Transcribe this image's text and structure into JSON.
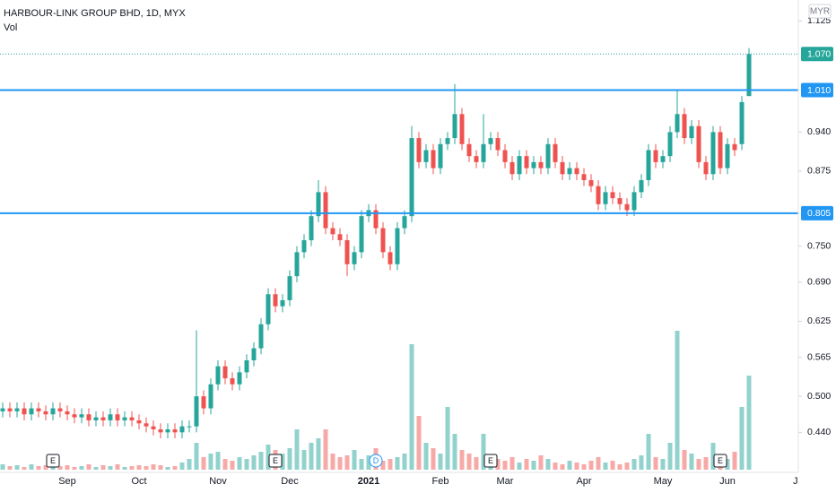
{
  "chart_data": {
    "type": "candlestick",
    "title": "HARBOUR-LINK GROUP BHD, 1D, MYX",
    "subtitle": "Vol",
    "currency": "MYR",
    "up_color": "#26a69a",
    "down_color": "#ef5350",
    "level_color": "#2196f3",
    "ylim": [
      0.339,
      1.16
    ],
    "vlim": [
      0,
      160
    ],
    "yticks": [
      {
        "value": 1.125,
        "label": "1.125"
      },
      {
        "value": 0.94,
        "label": "0.940"
      },
      {
        "value": 0.875,
        "label": "0.875"
      },
      {
        "value": 0.75,
        "label": "0.750"
      },
      {
        "value": 0.69,
        "label": "0.690"
      },
      {
        "value": 0.625,
        "label": "0.625"
      },
      {
        "value": 0.565,
        "label": "0.565"
      },
      {
        "value": 0.5,
        "label": "0.500"
      },
      {
        "value": 0.44,
        "label": "0.440"
      }
    ],
    "last_price": {
      "value": 1.07,
      "label": "1.070"
    },
    "levels": [
      {
        "value": 1.01,
        "label": "1.010"
      },
      {
        "value": 0.805,
        "label": "0.805"
      }
    ],
    "categories": [
      null,
      null,
      null,
      null,
      null,
      null,
      null,
      null,
      null,
      "Sep",
      null,
      null,
      null,
      null,
      null,
      null,
      null,
      null,
      null,
      "Oct",
      null,
      null,
      null,
      null,
      null,
      null,
      null,
      null,
      null,
      null,
      "Nov",
      null,
      null,
      null,
      null,
      null,
      null,
      null,
      null,
      null,
      "Dec",
      null,
      null,
      null,
      null,
      null,
      null,
      null,
      null,
      null,
      null,
      "2021",
      null,
      null,
      null,
      null,
      null,
      null,
      null,
      null,
      null,
      "Feb",
      null,
      null,
      null,
      null,
      null,
      null,
      null,
      null,
      "Mar",
      null,
      null,
      null,
      null,
      null,
      null,
      null,
      null,
      null,
      null,
      "Apr",
      null,
      null,
      null,
      null,
      null,
      null,
      null,
      null,
      null,
      null,
      "May",
      null,
      null,
      null,
      null,
      null,
      null,
      null,
      null,
      "Jun",
      null,
      null,
      null,
      null,
      null,
      null,
      null,
      null,
      null,
      "Jul"
    ],
    "events": [
      null,
      null,
      null,
      null,
      null,
      null,
      null,
      "E",
      null,
      null,
      null,
      null,
      null,
      null,
      null,
      null,
      null,
      null,
      null,
      null,
      null,
      null,
      null,
      null,
      null,
      null,
      null,
      null,
      null,
      null,
      null,
      null,
      null,
      null,
      null,
      null,
      null,
      null,
      "E",
      null,
      null,
      null,
      null,
      null,
      null,
      null,
      null,
      null,
      null,
      null,
      null,
      null,
      "D",
      null,
      null,
      null,
      null,
      null,
      null,
      null,
      null,
      null,
      null,
      null,
      null,
      null,
      null,
      null,
      "E",
      null,
      null,
      null,
      null,
      null,
      null,
      null,
      null,
      null,
      null,
      null,
      null,
      null,
      null,
      null,
      null,
      null,
      null,
      null,
      null,
      null,
      null,
      null,
      null,
      null,
      null,
      null,
      null,
      null,
      null,
      null,
      "E",
      null,
      null,
      null,
      null,
      null,
      null,
      null,
      null,
      null,
      null,
      null,
      null
    ],
    "open": [
      0.475,
      0.48,
      0.475,
      0.48,
      0.47,
      0.48,
      0.475,
      0.47,
      0.48,
      0.475,
      0.47,
      0.465,
      0.47,
      0.46,
      0.465,
      0.46,
      0.47,
      0.46,
      0.465,
      0.46,
      0.455,
      0.45,
      0.445,
      0.44,
      0.445,
      0.44,
      0.45,
      0.45,
      0.5,
      0.48,
      0.52,
      0.55,
      0.53,
      0.52,
      0.54,
      0.56,
      0.58,
      0.62,
      0.67,
      0.65,
      0.66,
      0.7,
      0.74,
      0.76,
      0.8,
      0.84,
      0.78,
      0.77,
      0.76,
      0.72,
      0.74,
      0.8,
      0.81,
      0.78,
      0.74,
      0.72,
      0.78,
      0.8,
      0.93,
      0.89,
      0.91,
      0.88,
      0.92,
      0.93,
      0.97,
      0.92,
      0.9,
      0.89,
      0.92,
      0.93,
      0.91,
      0.89,
      0.87,
      0.9,
      0.88,
      0.89,
      0.88,
      0.92,
      0.89,
      0.87,
      0.88,
      0.87,
      0.86,
      0.85,
      0.82,
      0.84,
      0.83,
      0.82,
      0.81,
      0.84,
      0.86,
      0.91,
      0.89,
      0.9,
      0.94,
      0.97,
      0.93,
      0.95,
      0.89,
      0.87,
      0.94,
      0.88,
      0.92,
      0.92,
      1.0,
      null,
      null,
      null,
      null,
      null,
      null,
      null
    ],
    "high": [
      0.49,
      0.49,
      0.49,
      0.49,
      0.49,
      0.49,
      0.485,
      0.49,
      0.49,
      0.485,
      0.48,
      0.48,
      0.48,
      0.475,
      0.475,
      0.48,
      0.48,
      0.475,
      0.475,
      0.47,
      0.465,
      0.46,
      0.455,
      0.455,
      0.455,
      0.46,
      0.46,
      0.61,
      0.51,
      0.53,
      0.56,
      0.56,
      0.54,
      0.55,
      0.57,
      0.59,
      0.63,
      0.68,
      0.68,
      0.67,
      0.71,
      0.75,
      0.77,
      0.81,
      0.86,
      0.85,
      0.79,
      0.78,
      0.77,
      0.75,
      0.81,
      0.82,
      0.82,
      0.79,
      0.75,
      0.79,
      0.81,
      0.95,
      0.94,
      0.92,
      0.92,
      0.93,
      0.94,
      1.02,
      0.98,
      0.93,
      0.91,
      0.97,
      0.94,
      0.94,
      0.92,
      0.9,
      0.91,
      0.91,
      0.9,
      0.9,
      0.93,
      0.93,
      0.9,
      0.89,
      0.89,
      0.88,
      0.87,
      0.86,
      0.85,
      0.85,
      0.84,
      0.83,
      0.85,
      0.87,
      0.92,
      0.92,
      0.91,
      0.95,
      1.01,
      0.98,
      0.96,
      0.96,
      0.9,
      0.95,
      0.95,
      0.93,
      0.93,
      1.0,
      1.08,
      null,
      null,
      null,
      null,
      null,
      null,
      null
    ],
    "low": [
      0.465,
      0.465,
      0.465,
      0.46,
      0.46,
      0.465,
      0.46,
      0.46,
      0.465,
      0.46,
      0.455,
      0.455,
      0.45,
      0.45,
      0.45,
      0.45,
      0.45,
      0.45,
      0.45,
      0.445,
      0.44,
      0.435,
      0.43,
      0.43,
      0.43,
      0.43,
      0.44,
      0.44,
      0.47,
      0.47,
      0.51,
      0.52,
      0.51,
      0.51,
      0.53,
      0.55,
      0.57,
      0.61,
      0.64,
      0.64,
      0.65,
      0.69,
      0.73,
      0.75,
      0.79,
      0.77,
      0.76,
      0.75,
      0.7,
      0.71,
      0.73,
      0.79,
      0.77,
      0.73,
      0.71,
      0.71,
      0.77,
      0.79,
      0.88,
      0.88,
      0.87,
      0.87,
      0.91,
      0.92,
      0.91,
      0.89,
      0.88,
      0.88,
      0.91,
      0.9,
      0.88,
      0.86,
      0.86,
      0.87,
      0.87,
      0.87,
      0.87,
      0.88,
      0.86,
      0.86,
      0.86,
      0.85,
      0.84,
      0.81,
      0.81,
      0.82,
      0.81,
      0.8,
      0.8,
      0.83,
      0.85,
      0.88,
      0.88,
      0.89,
      0.93,
      0.92,
      0.92,
      0.88,
      0.86,
      0.86,
      0.87,
      0.87,
      0.9,
      0.91,
      1.0,
      null,
      null,
      null,
      null,
      null,
      null,
      null
    ],
    "close": [
      0.48,
      0.475,
      0.48,
      0.47,
      0.48,
      0.475,
      0.47,
      0.48,
      0.475,
      0.47,
      0.465,
      0.47,
      0.46,
      0.465,
      0.46,
      0.47,
      0.46,
      0.465,
      0.46,
      0.455,
      0.45,
      0.445,
      0.44,
      0.445,
      0.44,
      0.45,
      0.45,
      0.5,
      0.48,
      0.52,
      0.55,
      0.53,
      0.52,
      0.54,
      0.56,
      0.58,
      0.62,
      0.67,
      0.65,
      0.66,
      0.7,
      0.74,
      0.76,
      0.8,
      0.84,
      0.78,
      0.77,
      0.76,
      0.72,
      0.74,
      0.8,
      0.81,
      0.78,
      0.74,
      0.72,
      0.78,
      0.8,
      0.93,
      0.89,
      0.91,
      0.88,
      0.92,
      0.93,
      0.97,
      0.92,
      0.9,
      0.89,
      0.92,
      0.93,
      0.91,
      0.89,
      0.87,
      0.9,
      0.88,
      0.89,
      0.88,
      0.92,
      0.89,
      0.87,
      0.88,
      0.87,
      0.86,
      0.85,
      0.82,
      0.84,
      0.83,
      0.82,
      0.81,
      0.84,
      0.86,
      0.91,
      0.89,
      0.9,
      0.94,
      0.97,
      0.93,
      0.95,
      0.89,
      0.87,
      0.94,
      0.88,
      0.92,
      0.91,
      0.99,
      1.07,
      null,
      null,
      null,
      null,
      null,
      null,
      null
    ],
    "volume": [
      6,
      4,
      5,
      3,
      6,
      4,
      5,
      8,
      4,
      5,
      3,
      4,
      6,
      3,
      5,
      4,
      6,
      3,
      4,
      5,
      4,
      6,
      5,
      3,
      4,
      8,
      12,
      30,
      14,
      18,
      20,
      12,
      10,
      14,
      12,
      16,
      20,
      28,
      22,
      18,
      24,
      45,
      22,
      30,
      35,
      45,
      18,
      14,
      16,
      22,
      12,
      16,
      24,
      10,
      12,
      14,
      18,
      140,
      60,
      30,
      24,
      18,
      70,
      40,
      22,
      18,
      14,
      40,
      16,
      12,
      10,
      14,
      8,
      12,
      10,
      16,
      12,
      8,
      6,
      10,
      8,
      6,
      10,
      14,
      8,
      10,
      6,
      8,
      12,
      16,
      40,
      14,
      12,
      30,
      155,
      22,
      18,
      12,
      14,
      30,
      10,
      12,
      20,
      70,
      105,
      null,
      null,
      null,
      null,
      null,
      null,
      null
    ]
  }
}
